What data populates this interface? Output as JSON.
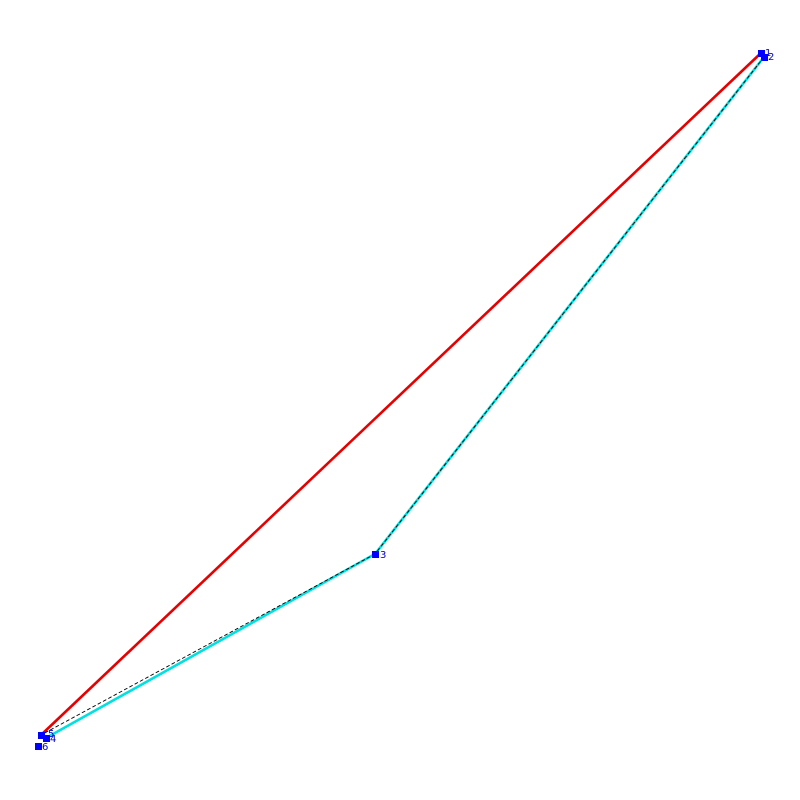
{
  "colors": {
    "background": "#ffffff",
    "red_path": "#e60000",
    "cyan_path": "#00e0e0",
    "dashed_path": "#000000",
    "node": "#0000ff",
    "label": "#0000cc"
  },
  "nodes": [
    {
      "id": "1",
      "label": "1"
    },
    {
      "id": "2",
      "label": "2"
    },
    {
      "id": "3",
      "label": "3"
    },
    {
      "id": "4",
      "label": "4"
    },
    {
      "id": "5",
      "label": "5"
    },
    {
      "id": "6",
      "label": "6"
    }
  ],
  "edges": {
    "red": [
      [
        "5",
        "1"
      ]
    ],
    "cyan": [
      [
        "2",
        "3"
      ],
      [
        "3",
        "4"
      ]
    ],
    "dashed": [
      [
        "2",
        "3"
      ],
      [
        "3",
        "5"
      ]
    ]
  }
}
